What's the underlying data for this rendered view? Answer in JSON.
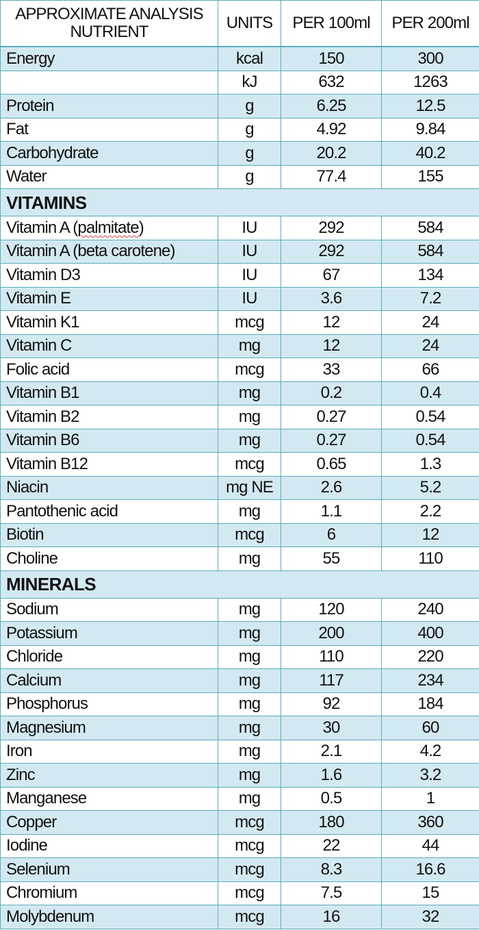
{
  "header": {
    "nutrient_line1": "APPROXIMATE ANALYSIS",
    "nutrient_line2": "NUTRIENT",
    "units": "UNITS",
    "per100": "PER 100ml",
    "per200": "PER 200ml"
  },
  "colors": {
    "row_alt": "#d3e9f1",
    "border": "#5aaabb"
  },
  "sections": [
    {
      "title": "",
      "rows": [
        [
          "Energy",
          "kcal",
          "150",
          "300"
        ],
        [
          "",
          "kJ",
          "632",
          "1263"
        ],
        [
          "Protein",
          "g",
          "6.25",
          "12.5"
        ],
        [
          "Fat",
          "g",
          "4.92",
          "9.84"
        ],
        [
          "Carbohydrate",
          "g",
          "20.2",
          "40.2"
        ],
        [
          "Water",
          "g",
          "77.4",
          "155"
        ]
      ]
    },
    {
      "title": "VITAMINS",
      "rows": [
        [
          "Vitamin A (palmitate)",
          "IU",
          "292",
          "584"
        ],
        [
          "Vitamin A (beta carotene)",
          "IU",
          "292",
          "584"
        ],
        [
          "Vitamin D3",
          "IU",
          "67",
          "134"
        ],
        [
          "Vitamin E",
          "IU",
          "3.6",
          "7.2"
        ],
        [
          "Vitamin K1",
          "mcg",
          "12",
          "24"
        ],
        [
          "Vitamin C",
          "mg",
          "12",
          "24"
        ],
        [
          "Folic acid",
          "mcg",
          "33",
          "66"
        ],
        [
          "Vitamin B1",
          "mg",
          "0.2",
          "0.4"
        ],
        [
          "Vitamin B2",
          "mg",
          "0.27",
          "0.54"
        ],
        [
          "Vitamin B6",
          "mg",
          "0.27",
          "0.54"
        ],
        [
          "Vitamin B12",
          "mcg",
          "0.65",
          "1.3"
        ],
        [
          "Niacin",
          "mg NE",
          "2.6",
          "5.2"
        ],
        [
          "Pantothenic acid",
          "mg",
          "1.1",
          "2.2"
        ],
        [
          "Biotin",
          "mcg",
          "6",
          "12"
        ],
        [
          "Choline",
          "mg",
          "55",
          "110"
        ]
      ]
    },
    {
      "title": "MINERALS",
      "rows": [
        [
          "Sodium",
          "mg",
          "120",
          "240"
        ],
        [
          "Potassium",
          "mg",
          "200",
          "400"
        ],
        [
          "Chloride",
          "mg",
          "110",
          "220"
        ],
        [
          "Calcium",
          "mg",
          "117",
          "234"
        ],
        [
          "Phosphorus",
          "mg",
          "92",
          "184"
        ],
        [
          "Magnesium",
          "mg",
          "30",
          "60"
        ],
        [
          "Iron",
          "mg",
          "2.1",
          "4.2"
        ],
        [
          "Zinc",
          "mg",
          "1.6",
          "3.2"
        ],
        [
          "Manganese",
          "mg",
          "0.5",
          "1"
        ],
        [
          "Copper",
          "mcg",
          "180",
          "360"
        ],
        [
          "Iodine",
          "mcg",
          "22",
          "44"
        ],
        [
          "Selenium",
          "mcg",
          "8.3",
          "16.6"
        ],
        [
          "Chromium",
          "mcg",
          "7.5",
          "15"
        ],
        [
          "Molybdenum",
          "mcg",
          "16",
          "32"
        ]
      ]
    }
  ]
}
